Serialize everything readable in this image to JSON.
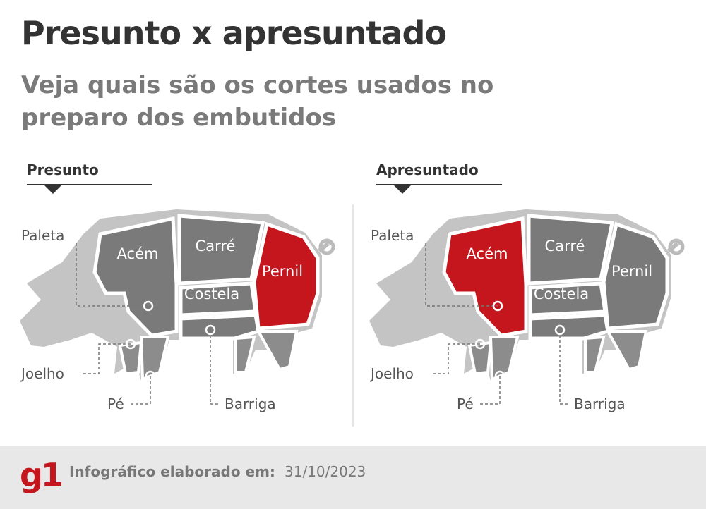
{
  "header": {
    "title": "Presunto x apresuntado",
    "subtitle": "Veja quais são os cortes usados no preparo dos embutidos"
  },
  "highlight_color": "#c4161c",
  "panels": [
    {
      "heading": "Presunto",
      "cuts": [
        {
          "label": "Acém",
          "highlighted": false
        },
        {
          "label": "Carré",
          "highlighted": false
        },
        {
          "label": "Pernil",
          "highlighted": true
        },
        {
          "label": "Costela",
          "highlighted": false
        }
      ],
      "callouts": [
        "Paleta",
        "Joelho",
        "Pé",
        "Barriga"
      ]
    },
    {
      "heading": "Apresuntado",
      "cuts": [
        {
          "label": "Acém",
          "highlighted": true
        },
        {
          "label": "Carré",
          "highlighted": false
        },
        {
          "label": "Pernil",
          "highlighted": false
        },
        {
          "label": "Costela",
          "highlighted": false
        }
      ],
      "callouts": [
        "Paleta",
        "Joelho",
        "Pé",
        "Barriga"
      ]
    }
  ],
  "footer": {
    "logo": "g1",
    "label": "Infográfico elaborado em:",
    "date": "31/10/2023"
  }
}
